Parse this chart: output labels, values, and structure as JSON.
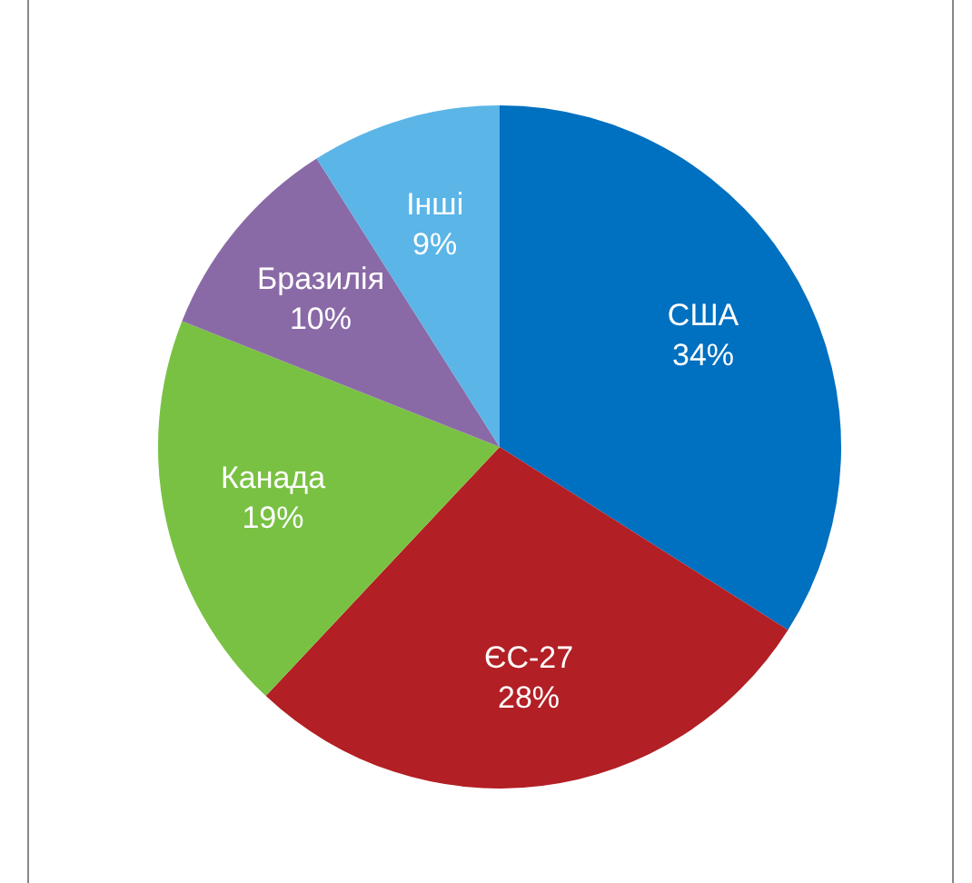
{
  "chart_data": {
    "type": "pie",
    "categories": [
      "США",
      "ЄС-27",
      "Канада",
      "Бразилія",
      "Інші"
    ],
    "values": [
      34,
      28,
      19,
      10,
      9
    ],
    "colors": [
      "#0070c0",
      "#b21f24",
      "#79c142",
      "#8a6aa6",
      "#5bb5e7"
    ],
    "value_labels": [
      "34%",
      "28%",
      "19%",
      "10%",
      "9%"
    ],
    "legend": false
  }
}
